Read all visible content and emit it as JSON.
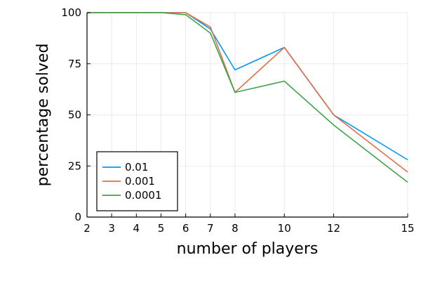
{
  "chart_data": {
    "type": "line",
    "title": "",
    "xlabel": "number of players",
    "ylabel": "percentage solved",
    "x": [
      2,
      3,
      4,
      5,
      6,
      7,
      8,
      10,
      12,
      15
    ],
    "x_ticks": [
      2,
      3,
      4,
      5,
      6,
      7,
      8,
      10,
      12,
      15
    ],
    "y_ticks": [
      0,
      25,
      50,
      75,
      100
    ],
    "xlim": [
      2,
      15
    ],
    "ylim": [
      0,
      100
    ],
    "grid": true,
    "legend_position": "bottom-left",
    "series": [
      {
        "name": "0.01",
        "color": "#009AFA",
        "values": [
          100,
          100,
          100,
          100,
          100,
          92,
          72,
          83,
          50,
          28
        ]
      },
      {
        "name": "0.001",
        "color": "#E26F46",
        "values": [
          100,
          100,
          100,
          100,
          100,
          93,
          61,
          83,
          50,
          22
        ]
      },
      {
        "name": "0.0001",
        "color": "#3DA44D",
        "values": [
          100,
          100,
          100,
          100,
          99,
          90,
          61,
          66.5,
          45,
          17
        ]
      }
    ]
  }
}
